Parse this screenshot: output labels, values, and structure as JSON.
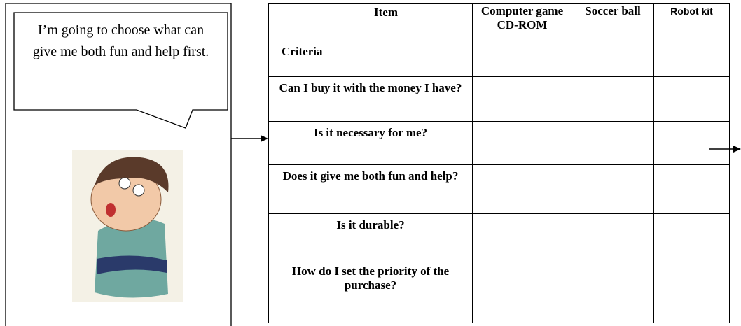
{
  "speech_bubble": {
    "text": "I’m going to choose what can give me both fun and help first."
  },
  "table": {
    "header": {
      "item_label": "Item",
      "criteria_label": "Criteria",
      "columns": [
        "Computer game CD-ROM",
        "Soccer ball",
        "Robot kit"
      ]
    },
    "rows": [
      "Can I buy it with the money I have?",
      "Is it necessary for me?",
      "Does it give me both fun and help?",
      "Is it durable?",
      "How do I set the priority of the purchase?"
    ]
  }
}
